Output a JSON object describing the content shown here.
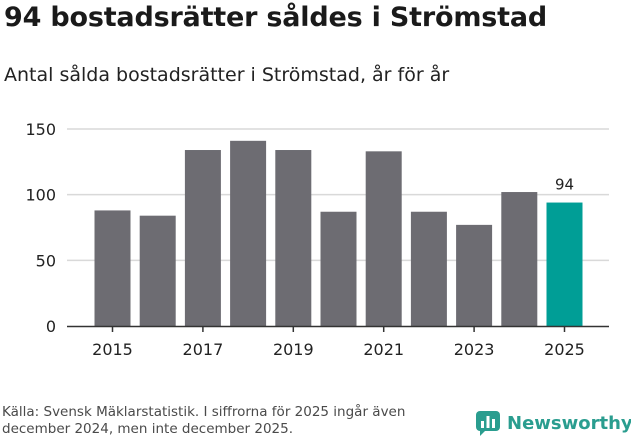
{
  "title": "94 bostadsrätter såldes i Strömstad",
  "subtitle": "Antal sålda bostadsrätter i Strömstad, år för år",
  "source": "Källa: Svensk Mäklarstatistik. I siffrorna för 2025 ingår även december 2024, men inte december 2025.",
  "brand": {
    "name": "Newsworthy",
    "icon": "newsworthy-logo-icon",
    "color": "#2a9d8f"
  },
  "colors": {
    "bar": "#6d6c72",
    "highlight": "#009e96",
    "grid": "#d9d9d9",
    "axis": "#333333"
  },
  "chart_data": {
    "type": "bar",
    "title": "Antal sålda bostadsrätter i Strömstad, år för år",
    "xlabel": "",
    "ylabel": "",
    "categories": [
      "2015",
      "2016",
      "2017",
      "2018",
      "2019",
      "2020",
      "2021",
      "2022",
      "2023",
      "2024",
      "2025"
    ],
    "values": [
      88,
      84,
      134,
      141,
      134,
      87,
      133,
      87,
      77,
      102,
      94
    ],
    "highlight_index": 10,
    "data_labels": [
      {
        "index": 10,
        "text": "94"
      }
    ],
    "ylim": [
      0,
      150
    ],
    "yticks": [
      0,
      50,
      100,
      150
    ],
    "xtick_labels": [
      "2015",
      "2017",
      "2019",
      "2021",
      "2023",
      "2025"
    ],
    "grid": true
  }
}
